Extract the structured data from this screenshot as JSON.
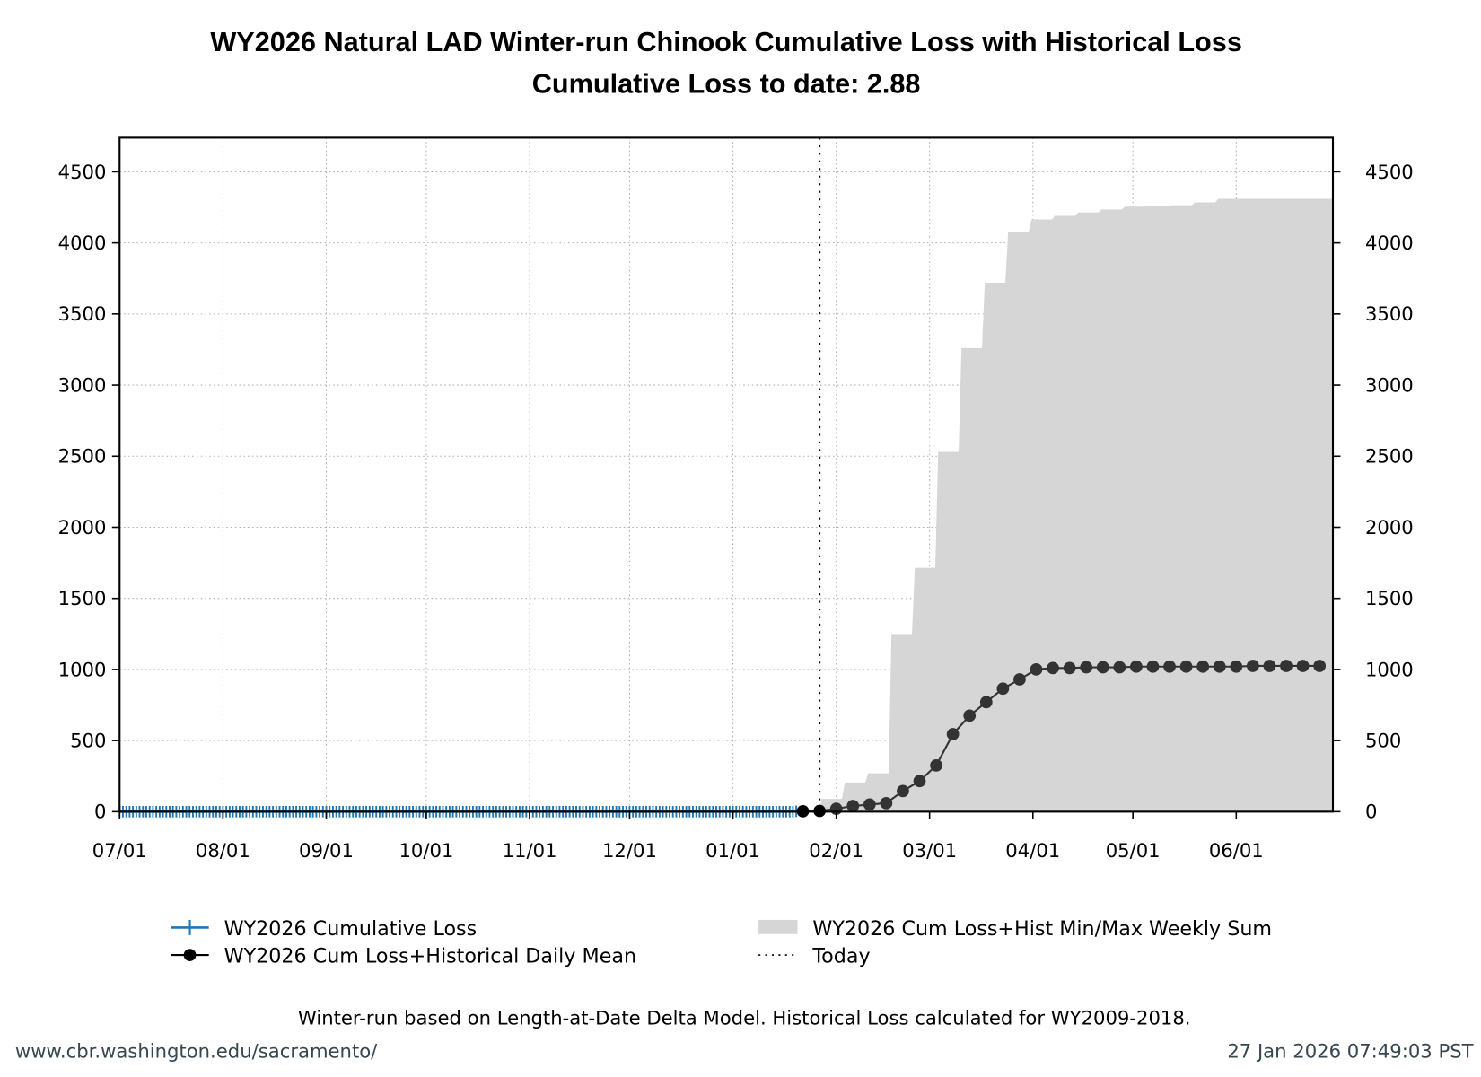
{
  "chart_data": {
    "type": "line",
    "title": "WY2026 Natural LAD Winter-run Chinook Cumulative Loss with Historical Loss",
    "subtitle": "Cumulative Loss to date: 2.88",
    "xlabel": "",
    "ylabel": "",
    "xlim": [
      "2025-07-01",
      "2026-06-30"
    ],
    "ylim": [
      0,
      4740
    ],
    "x_ticks": [
      {
        "date": "2025-07-01",
        "label": "07/01"
      },
      {
        "date": "2025-08-01",
        "label": "08/01"
      },
      {
        "date": "2025-09-01",
        "label": "09/01"
      },
      {
        "date": "2025-10-01",
        "label": "10/01"
      },
      {
        "date": "2025-11-01",
        "label": "11/01"
      },
      {
        "date": "2025-12-01",
        "label": "12/01"
      },
      {
        "date": "2026-01-01",
        "label": "01/01"
      },
      {
        "date": "2026-02-01",
        "label": "02/01"
      },
      {
        "date": "2026-03-01",
        "label": "03/01"
      },
      {
        "date": "2026-04-01",
        "label": "04/01"
      },
      {
        "date": "2026-05-01",
        "label": "05/01"
      },
      {
        "date": "2026-06-01",
        "label": "06/01"
      }
    ],
    "y_ticks": [
      0,
      500,
      1000,
      1500,
      2000,
      2500,
      3000,
      3500,
      4000,
      4500
    ],
    "grid": true,
    "legend_position": "bottom",
    "today": "2026-01-27",
    "series": [
      {
        "name": "WY2026 Cumulative Loss",
        "color": "#1f77b4",
        "marker": "plus",
        "x_start": "2025-07-01",
        "x_step_days": 1,
        "values": [
          0,
          0,
          0,
          0,
          0,
          0,
          0,
          0,
          0,
          0,
          0,
          0,
          0,
          0,
          0,
          0,
          0,
          0,
          0,
          0,
          0,
          0,
          0,
          0,
          0,
          0,
          0,
          0,
          0,
          0,
          0,
          0,
          0,
          0,
          0,
          0,
          0,
          0,
          0,
          0,
          0,
          0,
          0,
          0,
          0,
          0,
          0,
          0,
          0,
          0,
          0,
          0,
          0,
          0,
          0,
          0,
          0,
          0,
          0,
          0,
          0,
          0,
          0,
          0,
          0,
          0,
          0,
          0,
          0,
          0,
          0,
          0,
          0,
          0,
          0,
          0,
          0,
          0,
          0,
          0,
          0,
          0,
          0,
          0,
          0,
          0,
          0,
          0,
          0,
          0,
          0,
          0,
          0,
          0,
          0,
          0,
          0,
          0,
          0,
          0,
          0,
          0,
          0,
          0,
          0,
          0,
          0,
          0,
          0,
          0,
          0,
          0,
          0,
          0,
          0,
          0,
          0,
          0,
          0,
          0,
          0,
          0,
          0,
          0,
          0,
          0,
          0,
          0,
          0,
          0,
          0,
          0,
          0,
          0,
          0,
          0,
          0,
          0,
          0,
          0,
          0,
          0,
          0,
          0,
          0,
          0,
          0,
          0,
          0,
          0,
          0,
          0,
          0,
          0,
          0,
          0,
          0,
          0,
          0,
          0,
          0,
          0,
          0,
          0,
          0,
          0,
          0,
          0,
          0,
          0,
          0,
          0,
          0,
          0,
          0,
          0,
          0,
          0,
          0,
          0,
          0,
          0,
          0,
          0,
          0,
          0,
          0,
          0,
          0,
          0,
          0,
          0,
          0,
          0,
          0,
          0,
          0,
          0,
          0,
          0,
          0,
          0,
          0,
          2.88
        ]
      },
      {
        "name": "WY2026 Cum Loss+Historical Daily Mean",
        "color": "#333333",
        "marker": "circle",
        "x_start": "2026-01-22",
        "x_step_days": 5,
        "values": [
          3,
          5,
          20,
          40,
          50,
          60,
          145,
          215,
          325,
          545,
          675,
          770,
          865,
          930,
          1000,
          1010,
          1010,
          1015,
          1015,
          1015,
          1020,
          1020,
          1020,
          1020,
          1020,
          1020,
          1020,
          1025,
          1025,
          1025,
          1025,
          1025
        ]
      },
      {
        "name": "WY2026 Cum Loss+Hist Min/Max Weekly Sum",
        "color": "#d6d6d6",
        "type": "area-step",
        "x": [
          "2026-01-27",
          "2026-02-03",
          "2026-02-10",
          "2026-02-17",
          "2026-02-24",
          "2026-03-03",
          "2026-03-10",
          "2026-03-17",
          "2026-03-24",
          "2026-03-31",
          "2026-04-07",
          "2026-04-14",
          "2026-04-21",
          "2026-04-28",
          "2026-05-05",
          "2026-05-12",
          "2026-05-19",
          "2026-05-26",
          "2026-06-02",
          "2026-06-09",
          "2026-06-16",
          "2026-06-23"
        ],
        "max": [
          90,
          205,
          270,
          1250,
          1715,
          2530,
          3260,
          3720,
          4075,
          4165,
          4190,
          4215,
          4235,
          4255,
          4260,
          4265,
          4285,
          4310,
          4310,
          4310,
          4310,
          4310
        ],
        "min": [
          0,
          0,
          0,
          0,
          0,
          0,
          0,
          0,
          0,
          0,
          0,
          0,
          0,
          0,
          0,
          0,
          0,
          0,
          0,
          0,
          0,
          0
        ]
      }
    ]
  },
  "legend": {
    "cum_loss": "WY2026 Cumulative Loss",
    "daily_mean": "WY2026 Cum Loss+Historical Daily Mean",
    "minmax": "WY2026 Cum Loss+Hist Min/Max Weekly Sum",
    "today": "Today"
  },
  "note": "Winter-run based on Length-at-Date Delta Model. Historical Loss calculated for WY2009-2018.",
  "footer": {
    "url": "www.cbr.washington.edu/sacramento/",
    "timestamp": "27 Jan 2026 07:49:03 PST"
  }
}
